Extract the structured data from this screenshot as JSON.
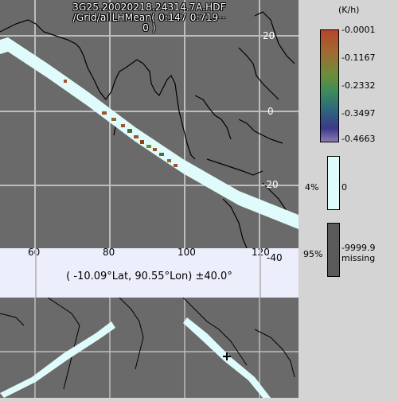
{
  "header": {
    "line1": "3G25.20020218.24314.7A.HDF",
    "line2": "/Grid/allLHMean( 0:147 0:719--",
    "line3": "0 )"
  },
  "map": {
    "lon_labels": [
      "60",
      "80",
      "100",
      "120"
    ],
    "lat_labels_right": [
      "20",
      "0",
      "-20",
      "-40"
    ],
    "grid_label_mid": "20",
    "grid_label_low": "20"
  },
  "coord": {
    "text": "( -10.09°Lat, 90.55°Lon) ±40.0°"
  },
  "legend": {
    "unit": "(K/h)",
    "ticks": [
      "-0.0001",
      "-0.1167",
      "-0.2332",
      "-0.3497",
      "-0.4663"
    ],
    "zero_pct": "4%",
    "zero_val": "0",
    "missing_pct": "95%",
    "missing_val": "-9999.9",
    "missing_word": "missing",
    "colors": {
      "zero_fill": "#e0fbfb",
      "missing_fill": "#5a5a5a",
      "map_bg": "#6a6a6a"
    }
  }
}
